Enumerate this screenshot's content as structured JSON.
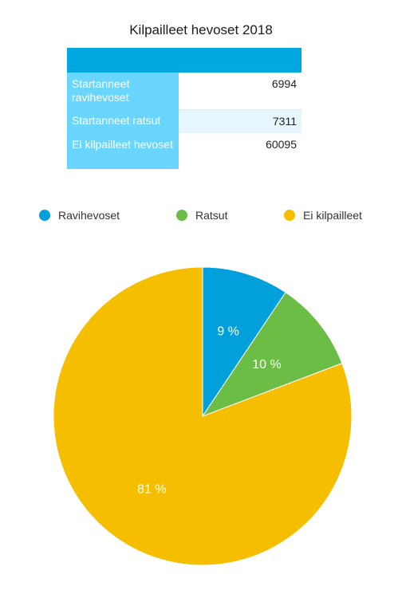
{
  "title": "Kilpailleet hevoset 2018",
  "table": {
    "rows": [
      {
        "label": "Startanneet ravihevoset",
        "value": "6994"
      },
      {
        "label": "Startanneet ratsut",
        "value": "7311"
      },
      {
        "label": "Ei kilpailleet hevoset",
        "value": "60095"
      }
    ]
  },
  "legend": [
    {
      "label": "Ravihevoset",
      "color": "#00a0dc"
    },
    {
      "label": "Ratsut",
      "color": "#6bbd45"
    },
    {
      "label": "Ei kilpailleet",
      "color": "#f5bf00"
    }
  ],
  "chart_data": {
    "type": "pie",
    "title": "Kilpailleet hevoset 2018",
    "categories": [
      "Ravihevoset",
      "Ratsut",
      "Ei kilpailleet"
    ],
    "values": [
      6994,
      7311,
      60095
    ],
    "data_labels": [
      "9 %",
      "10 %",
      "81 %"
    ],
    "colors": [
      "#00a0dc",
      "#6bbd45",
      "#f5bf00"
    ],
    "legend_position": "top"
  }
}
